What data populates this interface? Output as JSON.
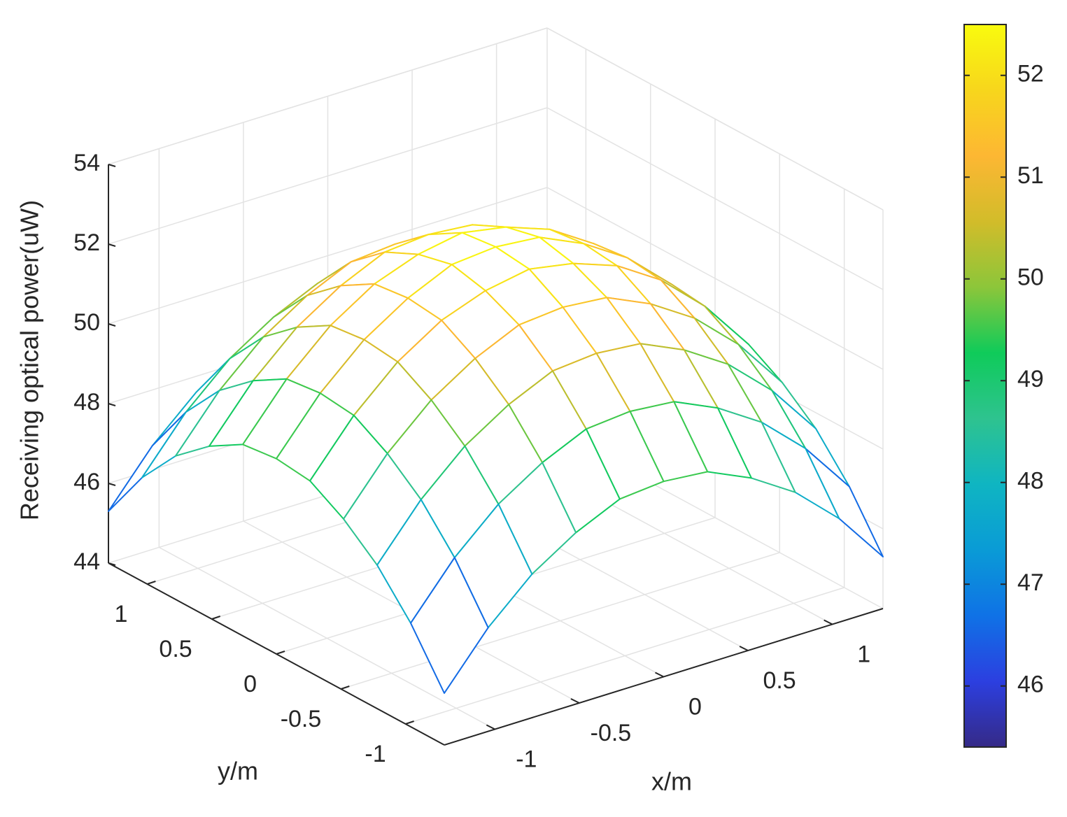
{
  "chart_data": {
    "type": "mesh3d",
    "z_label": "Receiving optical power(uW)",
    "x_label": "x/m",
    "y_label": "y/m",
    "x": [
      -1.3,
      -1.04,
      -0.78,
      -0.52,
      -0.26,
      0,
      0.26,
      0.52,
      0.78,
      1.04,
      1.3
    ],
    "y": [
      -1.3,
      -1.04,
      -0.78,
      -0.52,
      -0.26,
      0,
      0.26,
      0.52,
      0.78,
      1.04,
      1.3
    ],
    "z": [
      [
        45.3,
        46.6,
        47.6,
        48.3,
        48.8,
        48.9,
        48.8,
        48.3,
        47.6,
        46.6,
        45.3
      ],
      [
        46.6,
        47.9,
        48.9,
        49.6,
        50.1,
        50.2,
        50.1,
        49.6,
        48.9,
        47.9,
        46.6
      ],
      [
        47.6,
        48.9,
        49.9,
        50.6,
        51.1,
        51.2,
        51.1,
        50.6,
        49.9,
        48.9,
        47.6
      ],
      [
        48.3,
        49.6,
        50.6,
        51.3,
        51.8,
        51.9,
        51.8,
        51.3,
        50.6,
        49.6,
        48.3
      ],
      [
        48.8,
        50.1,
        51.1,
        51.8,
        52.2,
        52.4,
        52.2,
        51.8,
        51.1,
        50.1,
        48.8
      ],
      [
        48.9,
        50.2,
        51.2,
        51.9,
        52.4,
        52.5,
        52.4,
        51.9,
        51.2,
        50.2,
        48.9
      ],
      [
        48.8,
        50.1,
        51.1,
        51.8,
        52.2,
        52.4,
        52.2,
        51.8,
        51.1,
        50.1,
        48.8
      ],
      [
        48.3,
        49.6,
        50.6,
        51.3,
        51.8,
        51.9,
        51.8,
        51.3,
        50.6,
        49.6,
        48.3
      ],
      [
        47.6,
        48.9,
        49.9,
        50.6,
        51.1,
        51.2,
        51.1,
        50.6,
        49.9,
        48.9,
        47.6
      ],
      [
        46.6,
        47.9,
        48.9,
        49.6,
        50.1,
        50.2,
        50.1,
        49.6,
        48.9,
        47.9,
        46.6
      ],
      [
        45.3,
        46.6,
        47.6,
        48.3,
        48.8,
        48.9,
        48.8,
        48.3,
        47.6,
        46.6,
        45.3
      ]
    ],
    "xlim": [
      -1.3,
      1.3
    ],
    "ylim": [
      -1.3,
      1.3
    ],
    "zlim": [
      44,
      54
    ],
    "xticks": [
      -1,
      -0.5,
      0,
      0.5,
      1
    ],
    "yticks": [
      -1,
      -0.5,
      0,
      0.5,
      1
    ],
    "zticks": [
      44,
      46,
      48,
      50,
      52,
      54
    ],
    "clim": [
      45.4,
      52.5
    ],
    "cticks": [
      46,
      47,
      48,
      49,
      50,
      51,
      52
    ],
    "colormap": [
      "#352a87",
      "#2c3fe0",
      "#0f72e6",
      "#0a9bd6",
      "#0fb5c2",
      "#2ec38f",
      "#0fcb5a",
      "#8cc63a",
      "#d2bc2a",
      "#fdb733",
      "#f7d61c",
      "#f9fb0e"
    ],
    "grid": true
  }
}
